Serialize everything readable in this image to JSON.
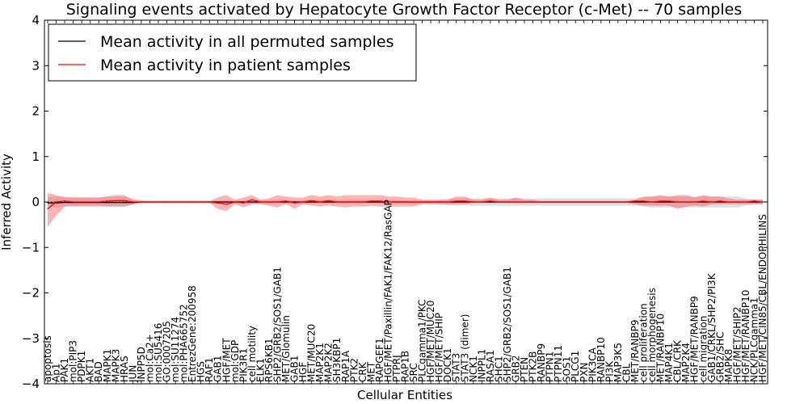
{
  "chart_data": {
    "type": "line",
    "title": "Signaling events activated by Hepatocyte Growth Factor Receptor (c-Met) -- 70 samples",
    "xlabel": "Cellular Entities",
    "ylabel": "Inferred Activity",
    "ylim": [
      -4,
      4
    ],
    "yticks": [
      -4,
      -3,
      -2,
      -1,
      0,
      1,
      2,
      3,
      4
    ],
    "ytick_labels": [
      "−4",
      "−3",
      "−2",
      "−1",
      "0",
      "1",
      "2",
      "3",
      "4"
    ],
    "grid": false,
    "legend_position": "top-left",
    "categories": [
      "apoptosis",
      "Ap1",
      "PAK1",
      "mol:PIP3",
      "PDPK1",
      "AKT1",
      "BAD",
      "MAPK1",
      "MAPK3",
      "HRAS",
      "JUN",
      "INPP5D",
      "mol:Ca2+",
      "mol:SU5416",
      "GO:0007205",
      "mol:SU11274",
      "mol:PHA665752",
      "EntrezGene:200958",
      "HGS",
      "RAF1",
      "GAB1",
      "HGF/MET",
      "mol:GDP",
      "PIK3R1",
      "cell motility",
      "ELK1",
      "RPS6KB1",
      "SHP2/GRB2/SOS1/GAB1",
      "MET/Glomulin",
      "GAB1",
      "HGF",
      "MET/MUC20",
      "MAP2K1",
      "MAP2K2",
      "SH3KBP1",
      "RAP1A",
      "PTK2",
      "CRK",
      "MET",
      "RAPGEF1",
      "HGF/MET/Paxillin/FAK1/FAK12/RasGAP",
      "PTPRJ",
      "RAP1B",
      "SRC",
      "PLCgamma1/PKC",
      "HGF/MET/MUC20",
      "HGF/MET/SHIP",
      "DOCK1",
      "STAT3",
      "STAT3 (dimer)",
      "NCK1",
      "INPPL1",
      "RASA1",
      "SHC1",
      "SHP2/GRB2/SOS1/GAB1",
      "GRB2",
      "PTEN",
      "PTK2B",
      "RANBP9",
      "PTPN1",
      "PTPN11",
      "SOS1",
      "PLCG1",
      "PXN",
      "PIK3CA",
      "RANBP10",
      "PI3K",
      "MAP3K5",
      "CBL",
      "MET/RANBP9",
      "cell proliferation",
      "cell morphogenesis",
      "MET/RANBP10",
      "MAP4K1",
      "CBL/CRK",
      "MAP2K4",
      "HGF/MET/RANBP9",
      "cell migration",
      "GAB1/CRKL/SHP2/PI3K",
      "GRB2/SHC",
      "MAPK8",
      "HGF/MET/SHIP2",
      "HGF/MET/RANBP10",
      "NCK/PLCgamma1",
      "HGF/MET/CIN85/CBL/ENDOPHILINS"
    ],
    "series": [
      {
        "name": "Mean activity in all permuted samples",
        "color": "#000000",
        "values": [
          -0.02,
          -0.02,
          -0.01,
          -0.01,
          -0.01,
          -0.01,
          -0.01,
          -0.01,
          -0.01,
          -0.01,
          -0.01,
          0.0,
          0.0,
          0.0,
          0.0,
          0.0,
          0.0,
          0.0,
          0.0,
          0.0,
          0.0,
          0.0,
          0.0,
          0.0,
          0.0,
          0.0,
          0.0,
          0.0,
          0.0,
          0.0,
          0.0,
          0.0,
          0.0,
          0.0,
          0.0,
          0.0,
          0.0,
          0.0,
          0.0,
          0.0,
          0.0,
          0.0,
          0.0,
          0.0,
          0.0,
          0.0,
          0.0,
          0.0,
          0.0,
          0.0,
          0.0,
          0.0,
          0.0,
          0.0,
          0.0,
          0.0,
          0.0,
          0.0,
          0.0,
          0.0,
          0.0,
          0.0,
          0.0,
          0.0,
          0.0,
          0.0,
          0.0,
          0.0,
          0.0,
          0.0,
          0.0,
          0.0,
          0.0,
          0.0,
          0.0,
          0.0,
          0.0,
          0.0,
          0.0,
          0.0,
          0.0,
          0.0,
          0.0,
          0.0,
          0.0
        ],
        "lower": [
          -0.08,
          -0.12,
          -0.1,
          -0.08,
          -0.08,
          -0.08,
          -0.08,
          -0.1,
          -0.1,
          -0.1,
          -0.06,
          -0.04,
          -0.03,
          -0.03,
          -0.03,
          -0.03,
          -0.03,
          -0.03,
          -0.03,
          -0.03,
          -0.04,
          -0.04,
          -0.04,
          -0.04,
          -0.04,
          -0.04,
          -0.04,
          -0.04,
          -0.04,
          -0.04,
          -0.04,
          -0.04,
          -0.04,
          -0.04,
          -0.04,
          -0.04,
          -0.04,
          -0.04,
          -0.04,
          -0.04,
          -0.04,
          -0.04,
          -0.04,
          -0.04,
          -0.04,
          -0.04,
          -0.05,
          -0.07,
          -0.08,
          -0.08,
          -0.08,
          -0.08,
          -0.08,
          -0.08,
          -0.08,
          -0.08,
          -0.08,
          -0.08,
          -0.08,
          -0.08,
          -0.08,
          -0.08,
          -0.08,
          -0.08,
          -0.08,
          -0.08,
          -0.08,
          -0.08,
          -0.08,
          -0.08,
          -0.1,
          -0.12,
          -0.12,
          -0.12,
          -0.12,
          -0.12,
          -0.12,
          -0.12,
          -0.12,
          -0.12,
          -0.12,
          -0.12,
          -0.08,
          -0.06,
          -0.05
        ],
        "upper": [
          0.1,
          0.12,
          0.12,
          0.1,
          0.1,
          0.1,
          0.1,
          0.12,
          0.12,
          0.12,
          0.08,
          0.05,
          0.03,
          0.03,
          0.03,
          0.03,
          0.03,
          0.03,
          0.03,
          0.03,
          0.04,
          0.04,
          0.04,
          0.04,
          0.04,
          0.04,
          0.04,
          0.04,
          0.04,
          0.04,
          0.04,
          0.04,
          0.04,
          0.04,
          0.04,
          0.04,
          0.04,
          0.04,
          0.04,
          0.04,
          0.04,
          0.04,
          0.04,
          0.04,
          0.04,
          0.04,
          0.05,
          0.07,
          0.08,
          0.08,
          0.08,
          0.08,
          0.08,
          0.08,
          0.08,
          0.08,
          0.08,
          0.08,
          0.08,
          0.08,
          0.08,
          0.08,
          0.08,
          0.08,
          0.08,
          0.08,
          0.08,
          0.08,
          0.08,
          0.08,
          0.1,
          0.12,
          0.12,
          0.12,
          0.12,
          0.12,
          0.12,
          0.12,
          0.12,
          0.12,
          0.12,
          0.12,
          0.08,
          0.06,
          0.05
        ]
      },
      {
        "name": "Mean activity in patient samples",
        "color": "#ff0000",
        "values": [
          -0.15,
          0.0,
          0.02,
          0.0,
          0.0,
          0.0,
          0.0,
          0.02,
          0.03,
          0.03,
          0.0,
          0.0,
          0.0,
          0.0,
          0.0,
          0.0,
          0.0,
          0.0,
          0.0,
          0.0,
          -0.02,
          -0.05,
          0.0,
          -0.02,
          0.05,
          0.0,
          0.0,
          0.0,
          0.02,
          -0.02,
          0.0,
          0.03,
          0.0,
          0.03,
          0.0,
          0.0,
          0.0,
          0.0,
          0.02,
          0.02,
          0.0,
          0.0,
          0.0,
          0.0,
          0.0,
          0.0,
          0.0,
          0.0,
          0.02,
          0.02,
          0.0,
          0.0,
          0.02,
          0.0,
          0.0,
          0.0,
          0.0,
          0.0,
          0.0,
          0.0,
          0.0,
          0.0,
          0.0,
          0.0,
          0.0,
          0.0,
          0.0,
          0.0,
          0.0,
          0.02,
          0.02,
          0.0,
          0.02,
          0.02,
          0.0,
          0.0,
          0.0,
          0.02,
          0.0,
          0.02,
          0.0,
          0.0,
          0.0,
          0.02,
          0.0
        ],
        "lower": [
          -0.55,
          -0.3,
          -0.1,
          -0.1,
          -0.1,
          -0.1,
          -0.1,
          -0.1,
          -0.1,
          -0.1,
          -0.05,
          -0.02,
          -0.02,
          -0.02,
          -0.02,
          -0.02,
          -0.02,
          -0.02,
          -0.02,
          -0.02,
          -0.15,
          -0.2,
          -0.05,
          -0.12,
          -0.05,
          -0.05,
          -0.08,
          -0.12,
          -0.05,
          -0.15,
          -0.05,
          -0.08,
          -0.1,
          -0.08,
          -0.1,
          -0.12,
          -0.1,
          -0.1,
          -0.08,
          -0.1,
          -0.1,
          -0.1,
          -0.1,
          -0.1,
          -0.05,
          -0.05,
          -0.05,
          -0.05,
          -0.05,
          -0.05,
          -0.02,
          -0.02,
          -0.02,
          -0.02,
          -0.02,
          -0.02,
          -0.02,
          -0.02,
          -0.02,
          -0.02,
          -0.02,
          -0.02,
          -0.02,
          -0.02,
          -0.02,
          -0.02,
          -0.02,
          -0.02,
          -0.02,
          -0.05,
          -0.08,
          -0.08,
          -0.08,
          -0.08,
          -0.15,
          -0.1,
          -0.08,
          -0.1,
          -0.05,
          -0.05,
          -0.05,
          -0.05,
          -0.05,
          -0.05,
          -0.05
        ],
        "upper": [
          0.2,
          0.15,
          0.1,
          0.1,
          0.1,
          0.1,
          0.1,
          0.12,
          0.15,
          0.15,
          0.05,
          0.02,
          0.02,
          0.02,
          0.02,
          0.02,
          0.02,
          0.02,
          0.02,
          0.02,
          0.1,
          0.15,
          0.05,
          0.1,
          0.15,
          0.05,
          0.08,
          0.15,
          0.12,
          0.1,
          0.1,
          0.15,
          0.12,
          0.15,
          0.12,
          0.15,
          0.15,
          0.15,
          0.15,
          0.15,
          0.12,
          0.12,
          0.1,
          0.1,
          0.05,
          0.05,
          0.05,
          0.05,
          0.12,
          0.12,
          0.05,
          0.05,
          0.1,
          0.05,
          0.05,
          0.1,
          0.05,
          0.05,
          0.02,
          0.02,
          0.02,
          0.02,
          0.02,
          0.02,
          0.02,
          0.02,
          0.02,
          0.02,
          0.02,
          0.05,
          0.12,
          0.12,
          0.15,
          0.12,
          0.15,
          0.15,
          0.1,
          0.15,
          0.12,
          0.12,
          0.08,
          0.05,
          0.05,
          0.05,
          0.05
        ]
      }
    ]
  }
}
